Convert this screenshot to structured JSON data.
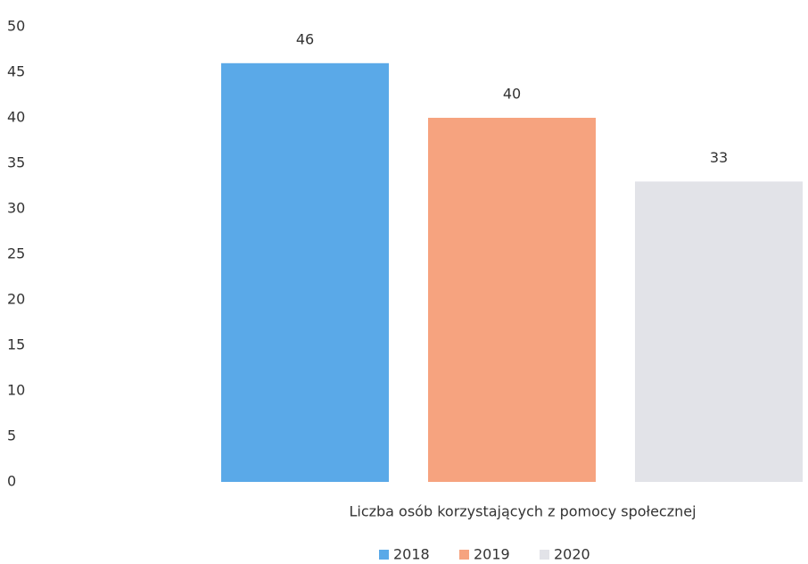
{
  "chart_data": {
    "type": "bar",
    "categories": [
      "Liczba osób korzystających z pomocy społecznej"
    ],
    "series": [
      {
        "name": "2018",
        "color": "#5aa9e8",
        "values": [
          46
        ]
      },
      {
        "name": "2019",
        "color": "#f6a37f",
        "values": [
          40
        ]
      },
      {
        "name": "2020",
        "color": "#e2e3e8",
        "values": [
          33
        ]
      }
    ],
    "ylim": [
      0,
      50
    ],
    "yticks": [
      0,
      5,
      10,
      15,
      20,
      25,
      30,
      35,
      40,
      45,
      50
    ],
    "grid": false
  }
}
